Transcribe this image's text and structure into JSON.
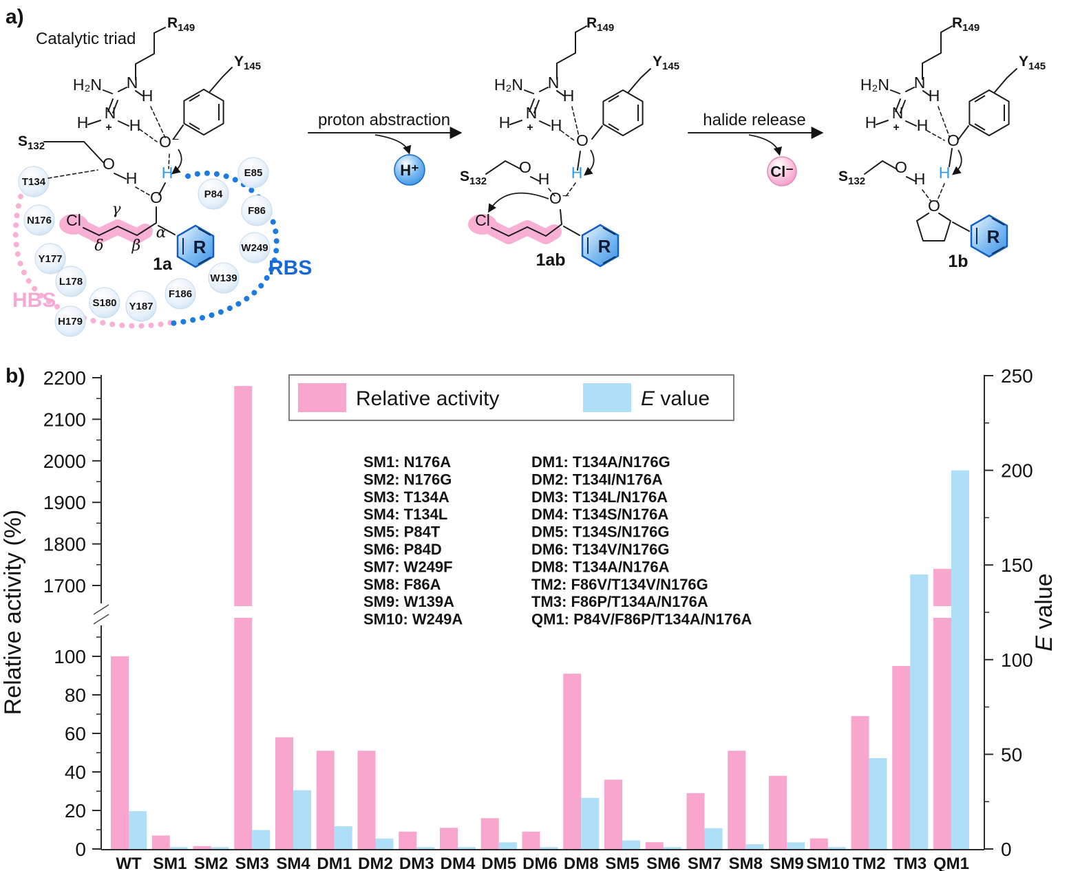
{
  "panel_a": {
    "label": "a)",
    "caption": "Catalytic triad",
    "arrow1_label": "proton abstraction",
    "arrow2_label": "halide release",
    "h_plus": "H⁺",
    "cl_minus": "Cl⁻",
    "anchors": {
      "r_main": "R",
      "r_sub": "149",
      "y_main": "Y",
      "y_sub": "145",
      "s_main": "S",
      "s_sub": "132"
    },
    "atoms": {
      "h2n": "H₂N",
      "n": "N",
      "h": "H",
      "plus": "+",
      "o": "O",
      "o_minus": "O⁻",
      "cl": "Cl",
      "r": "R"
    },
    "greek": {
      "alpha": "α",
      "beta": "β",
      "gamma": "γ",
      "delta": "δ"
    },
    "species": {
      "substrate": "1a",
      "intermediate": "1ab",
      "product": "1b"
    },
    "sites": {
      "hbs": "HBS",
      "rbs": "RBS"
    },
    "pocket_residues": [
      "T134",
      "N176",
      "Y177",
      "L178",
      "S180",
      "H179",
      "Y187",
      "F186",
      "W139",
      "W249",
      "F86",
      "P84",
      "E85"
    ]
  },
  "panel_b": {
    "label": "b)",
    "mutant_key": {
      "left": [
        "SM1: N176A",
        "SM2: N176G",
        "SM3: T134A",
        "SM4: T134L",
        "SM5: P84T",
        "SM6: P84D",
        "SM7: W249F",
        "SM8: F86A",
        "SM9: W139A",
        "SM10: W249A"
      ],
      "right": [
        "DM1: T134A/N176G",
        "DM2: T134I/N176A",
        "DM3: T134L/N176A",
        "DM4: T134S/N176A",
        "DM5: T134S/N176G",
        "DM6: T134V/N176G",
        "DM8: T134A/N176A",
        "TM2: F86V/T134V/N176G",
        "TM3: F86P/T134A/N176A",
        "QM1: P84V/F86P/T134A/N176A"
      ]
    }
  },
  "chart_data": {
    "type": "bar",
    "categories": [
      "WT",
      "SM1",
      "SM2",
      "SM3",
      "SM4",
      "DM1",
      "DM2",
      "DM3",
      "DM4",
      "DM5",
      "DM6",
      "DM8",
      "SM5",
      "SM6",
      "SM7",
      "SM8",
      "SM9",
      "SM10",
      "TM2",
      "TM3",
      "QM1"
    ],
    "series": [
      {
        "name": "Relative activity",
        "axis": "left",
        "color": "#F8A6CE",
        "values": [
          100,
          7,
          1.5,
          2180,
          58,
          51,
          51,
          9,
          11,
          16,
          9,
          91,
          36,
          3.5,
          29,
          51,
          38,
          5.5,
          69,
          95,
          1740
        ]
      },
      {
        "name": "E value",
        "label_italic": "E",
        "label_rest": " value",
        "axis": "right",
        "color": "#AEDFF7",
        "values": [
          20,
          1,
          1,
          10,
          31,
          12,
          5.5,
          1,
          1,
          3.5,
          1,
          27,
          4.5,
          1,
          11,
          2.5,
          3.5,
          1,
          48,
          145,
          200
        ]
      }
    ],
    "left_axis": {
      "label": "Relative activity (%)",
      "broken": true,
      "lower_range": [
        0,
        115
      ],
      "upper_range": [
        1700,
        2200
      ],
      "lower_ticks": [
        0,
        20,
        40,
        60,
        80,
        100
      ],
      "lower_minor_ticks": [
        10,
        30,
        50,
        70,
        90,
        110
      ],
      "upper_ticks": [
        1700,
        1800,
        1900,
        2000,
        2100,
        2200
      ],
      "upper_minor_ticks": [
        1750,
        1850,
        1950,
        2050,
        2150
      ]
    },
    "right_axis": {
      "label_italic": "E",
      "label_rest": " value",
      "range": [
        0,
        250
      ],
      "ticks": [
        0,
        50,
        100,
        150,
        200,
        250
      ],
      "minor_ticks": [
        25,
        75,
        125,
        175,
        225
      ]
    },
    "grid": false,
    "legend_position": "top-center"
  }
}
